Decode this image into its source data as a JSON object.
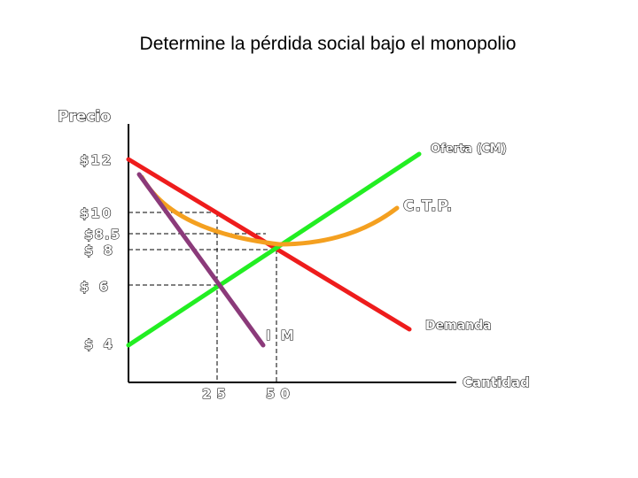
{
  "title": "Determine la pérdida social bajo el monopolio",
  "axes": {
    "y_label": "Precio",
    "x_label": "Cantidad"
  },
  "price_labels": [
    "$12",
    "$10",
    "$8.5",
    "$ 8",
    "$ 6",
    "$ 4"
  ],
  "quantity_labels": [
    "25",
    "50"
  ],
  "curve_labels": {
    "supply": "Oferta (CM)",
    "atc": "C.T.P.",
    "demand": "Demanda",
    "mr": "I M"
  },
  "colors": {
    "demand": "#ee1c1c",
    "supply": "#22ee22",
    "atc": "#f4a020",
    "mr": "#8b3a7a",
    "axis": "#000000",
    "guides": "#000000"
  }
}
